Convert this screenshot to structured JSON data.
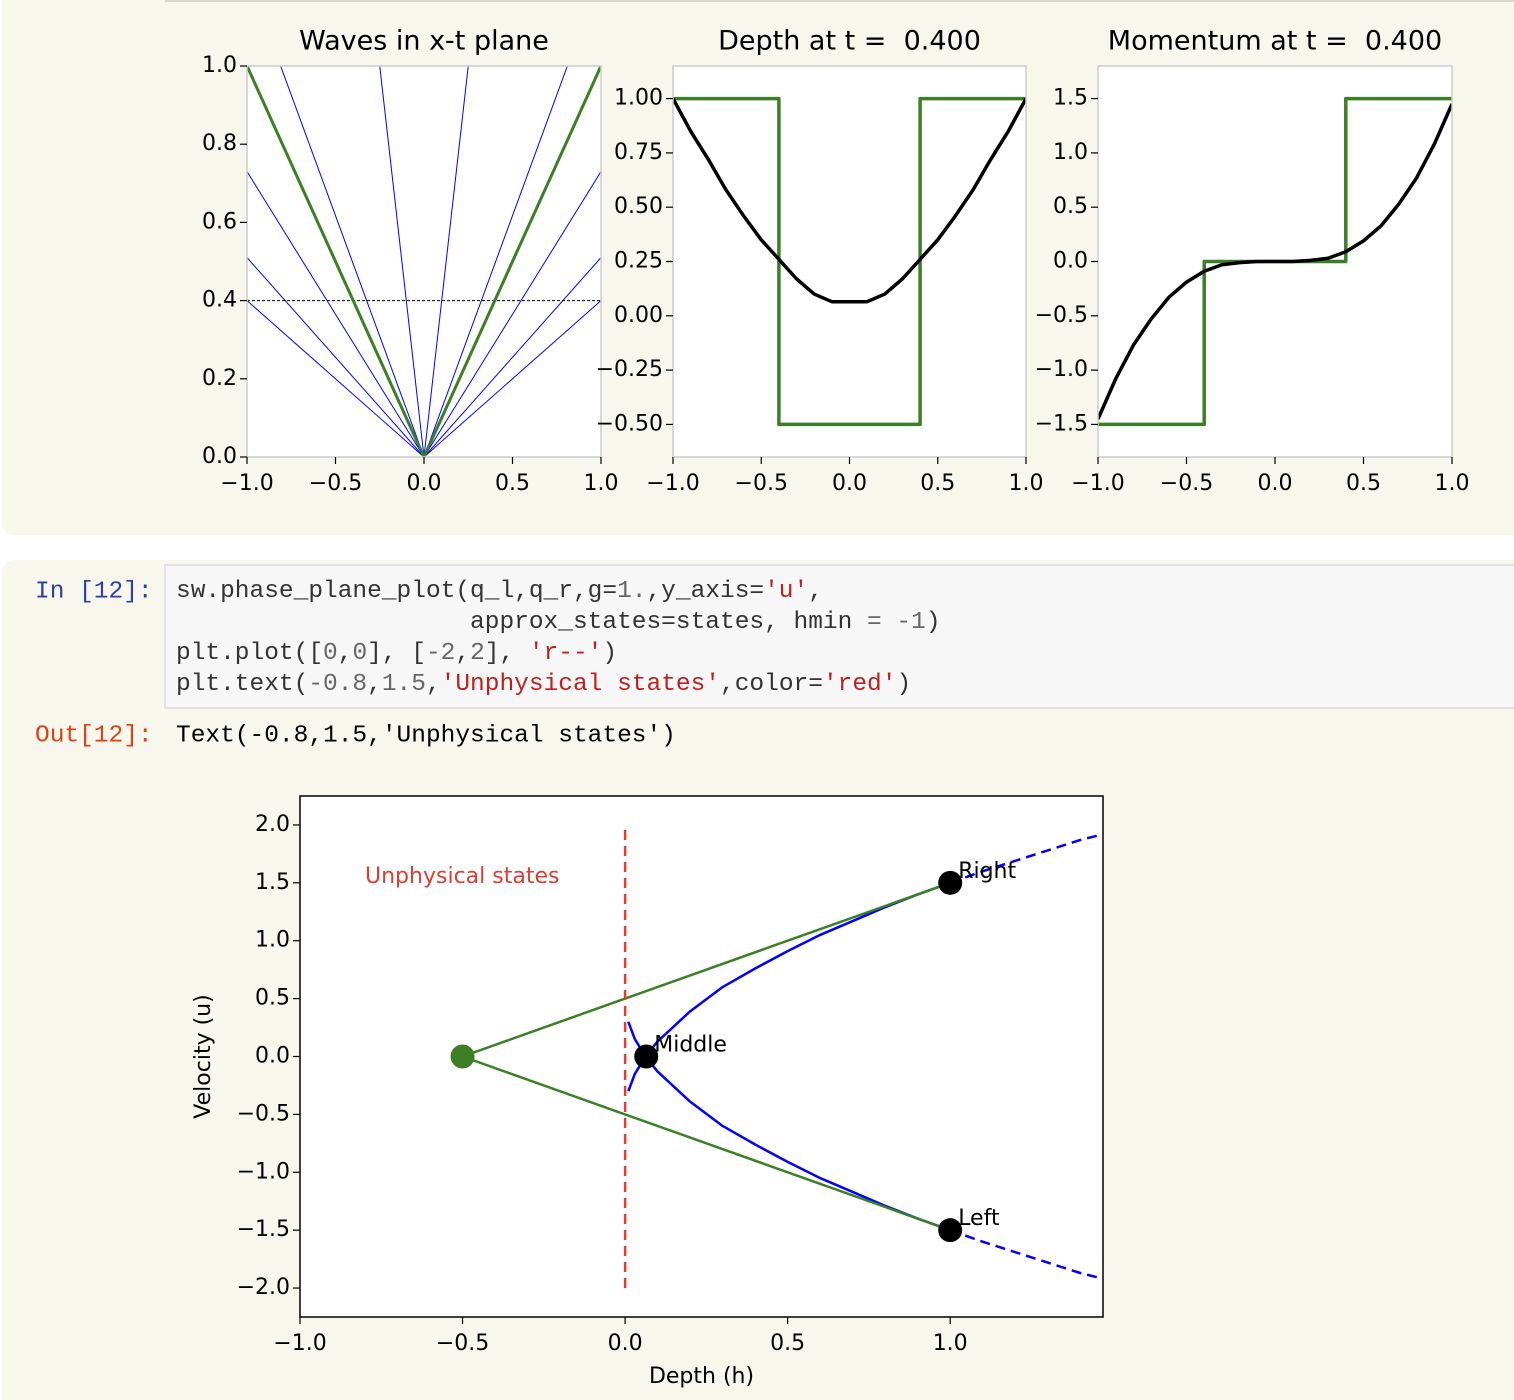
{
  "notebook": {
    "input_prompt": "In [12]:",
    "code": [
      [
        {
          "text": "sw.phase_plane_plot(q_l,q_r,g=",
          "color": "#333333"
        },
        {
          "text": "1.",
          "color": "#666666"
        },
        {
          "text": ",y_axis=",
          "color": "#333333"
        },
        {
          "text": "'u'",
          "color": "#ba2121"
        },
        {
          "text": ",",
          "color": "#333333"
        }
      ],
      [
        {
          "text": "                    approx_states=states, hmin ",
          "color": "#333333"
        },
        {
          "text": "= -1",
          "color": "#666666"
        },
        {
          "text": ")",
          "color": "#333333"
        }
      ],
      [
        {
          "text": "plt.plot([",
          "color": "#333333"
        },
        {
          "text": "0",
          "color": "#666666"
        },
        {
          "text": ",",
          "color": "#333333"
        },
        {
          "text": "0",
          "color": "#666666"
        },
        {
          "text": "], [",
          "color": "#333333"
        },
        {
          "text": "-2",
          "color": "#666666"
        },
        {
          "text": ",",
          "color": "#333333"
        },
        {
          "text": "2",
          "color": "#666666"
        },
        {
          "text": "], ",
          "color": "#333333"
        },
        {
          "text": "'r--'",
          "color": "#ba2121"
        },
        {
          "text": ")",
          "color": "#333333"
        }
      ],
      [
        {
          "text": "plt.text(",
          "color": "#333333"
        },
        {
          "text": "-0.8",
          "color": "#666666"
        },
        {
          "text": ",",
          "color": "#333333"
        },
        {
          "text": "1.5",
          "color": "#666666"
        },
        {
          "text": ",",
          "color": "#333333"
        },
        {
          "text": "'Unphysical states'",
          "color": "#ba2121"
        },
        {
          "text": ",color=",
          "color": "#333333"
        },
        {
          "text": "'red'",
          "color": "#ba2121"
        },
        {
          "text": ")",
          "color": "#333333"
        }
      ]
    ],
    "output_prompt": "Out[12]:",
    "output_text": "Text(-0.8,1.5,'Unphysical states')"
  },
  "chart_data": [
    {
      "type": "line",
      "title": "Waves in x-t plane",
      "xlim": [
        -1,
        1
      ],
      "ylim": [
        0,
        1
      ],
      "xticks": [
        {
          "value": -1,
          "label": "−1.0"
        },
        {
          "value": -0.5,
          "label": "−0.5"
        },
        {
          "value": 0,
          "label": "0.0"
        },
        0.5,
        {
          "value": 1,
          "label": "1.0"
        }
      ],
      "yticks": [
        {
          "value": 0,
          "label": "0.0"
        },
        0.2,
        0.4,
        0.6,
        0.8,
        {
          "value": 1,
          "label": "1.0"
        }
      ],
      "spine_color": "#cccccc",
      "series": [
        {
          "color": "#0000ff",
          "x": [
            0,
            -0.81
          ],
          "values": [
            0,
            1
          ]
        },
        {
          "color": "#0000ff",
          "x": [
            0,
            -0.25
          ],
          "values": [
            0,
            1
          ]
        },
        {
          "color": "#0000ff",
          "x": [
            0,
            0.25
          ],
          "values": [
            0,
            1
          ]
        },
        {
          "color": "#0000ff",
          "x": [
            0,
            0.81
          ],
          "values": [
            0,
            1
          ]
        },
        {
          "color": "#0000ff",
          "x": [
            0,
            -1
          ],
          "values": [
            0,
            0.73
          ]
        },
        {
          "color": "#0000ff",
          "x": [
            0,
            -1
          ],
          "values": [
            0,
            0.51
          ]
        },
        {
          "color": "#0000ff",
          "x": [
            0,
            -1
          ],
          "values": [
            0,
            0.4
          ]
        },
        {
          "color": "#0000ff",
          "x": [
            0,
            1
          ],
          "values": [
            0,
            0.73
          ]
        },
        {
          "color": "#0000ff",
          "x": [
            0,
            1
          ],
          "values": [
            0,
            0.51
          ]
        },
        {
          "color": "#0000ff",
          "x": [
            0,
            1
          ],
          "values": [
            0,
            0.4
          ]
        },
        {
          "color": "#000000",
          "linestyle": "dashed",
          "x": [
            -1,
            1
          ],
          "values": [
            0.4,
            0.4
          ]
        },
        {
          "color": "#3d7f26",
          "x": [
            0,
            -1
          ],
          "values": [
            0,
            1
          ]
        },
        {
          "color": "#3d7f26",
          "x": [
            0,
            1
          ],
          "values": [
            0,
            1
          ]
        }
      ]
    },
    {
      "type": "line",
      "title": "Depth at t =  0.400",
      "xlim": [
        -1,
        1
      ],
      "ylim": [
        -0.65,
        1.15
      ],
      "xticks": [
        {
          "value": -1,
          "label": "−1.0"
        },
        {
          "value": -0.5,
          "label": "−0.5"
        },
        {
          "value": 0,
          "label": "0.0"
        },
        0.5,
        {
          "value": 1,
          "label": "1.0"
        }
      ],
      "yticks": [
        {
          "value": -0.5,
          "label": "−0.50"
        },
        {
          "value": -0.25,
          "label": "−0.25"
        },
        {
          "value": 0,
          "label": "0.00"
        },
        0.25,
        {
          "value": 0.5,
          "label": "0.50"
        },
        0.75,
        {
          "value": 1,
          "label": "1.00"
        }
      ],
      "spine_color": "#cccccc",
      "series": [
        {
          "color": "#3d7f26",
          "x": [
            -1,
            -0.4,
            -0.4,
            0.4,
            0.4,
            1
          ],
          "values": [
            1,
            1,
            -0.5,
            -0.5,
            1,
            1
          ]
        },
        {
          "color": "#000000",
          "x": [
            -1,
            -0.9,
            -0.8,
            -0.7,
            -0.6,
            -0.5,
            -0.4,
            -0.3,
            -0.2,
            -0.1,
            0.1,
            0.2,
            0.3,
            0.4,
            0.5,
            0.6,
            0.7,
            0.8,
            0.9,
            1
          ],
          "values": [
            1,
            0.85,
            0.72,
            0.58,
            0.46,
            0.35,
            0.26,
            0.17,
            0.1,
            0.065,
            0.065,
            0.1,
            0.17,
            0.26,
            0.35,
            0.46,
            0.58,
            0.72,
            0.85,
            1
          ]
        }
      ]
    },
    {
      "type": "line",
      "title": "Momentum at t =  0.400",
      "xlim": [
        -1,
        1
      ],
      "ylim": [
        -1.8,
        1.8
      ],
      "xticks": [
        {
          "value": -1,
          "label": "−1.0"
        },
        {
          "value": -0.5,
          "label": "−0.5"
        },
        {
          "value": 0,
          "label": "0.0"
        },
        0.5,
        {
          "value": 1,
          "label": "1.0"
        }
      ],
      "yticks": [
        {
          "value": -1.5,
          "label": "−1.5"
        },
        {
          "value": -1,
          "label": "−1.0"
        },
        {
          "value": -0.5,
          "label": "−0.5"
        },
        {
          "value": 0,
          "label": "0.0"
        },
        0.5,
        {
          "value": 1,
          "label": "1.0"
        },
        1.5
      ],
      "spine_color": "#cccccc",
      "series": [
        {
          "color": "#3d7f26",
          "x": [
            -1,
            -0.4,
            -0.4,
            0.4,
            0.4,
            1
          ],
          "values": [
            -1.5,
            -1.5,
            0,
            0,
            1.5,
            1.5
          ]
        },
        {
          "color": "#000000",
          "x": [
            -1,
            -0.9,
            -0.8,
            -0.7,
            -0.6,
            -0.5,
            -0.4,
            -0.3,
            -0.2,
            -0.1,
            0.1,
            0.2,
            0.3,
            0.4,
            0.5,
            0.6,
            0.7,
            0.8,
            0.9,
            1
          ],
          "values": [
            -1.45,
            -1.08,
            -0.77,
            -0.53,
            -0.33,
            -0.19,
            -0.09,
            -0.03,
            -0.01,
            0,
            0,
            0.01,
            0.03,
            0.09,
            0.19,
            0.33,
            0.53,
            0.77,
            1.08,
            1.45
          ]
        }
      ]
    },
    {
      "type": "line",
      "xlabel": "Depth (h)",
      "ylabel": "Velocity (u)",
      "xlim": [
        -1,
        1.47
      ],
      "ylim": [
        -2.25,
        2.25
      ],
      "xticks": [
        {
          "value": -1,
          "label": "−1.0"
        },
        {
          "value": -0.5,
          "label": "−0.5"
        },
        {
          "value": 0,
          "label": "0.0"
        },
        0.5,
        {
          "value": 1,
          "label": "1.0"
        }
      ],
      "yticks": [
        {
          "value": -2,
          "label": "−2.0"
        },
        {
          "value": -1.5,
          "label": "−1.5"
        },
        {
          "value": -1,
          "label": "−1.0"
        },
        {
          "value": -0.5,
          "label": "−0.5"
        },
        {
          "value": 0,
          "label": "0.0"
        },
        0.5,
        {
          "value": 1,
          "label": "1.0"
        },
        1.5,
        {
          "value": 2,
          "label": "2.0"
        }
      ],
      "spine_color": "#000000",
      "series": [
        {
          "color": "#0000ff",
          "x": [
            0.01,
            0.03,
            0.065,
            0.1,
            0.2,
            0.3,
            0.4,
            0.5,
            0.6,
            0.7,
            0.8,
            0.9,
            1
          ],
          "values": [
            0.3,
            0.15,
            -0.01,
            -0.13,
            -0.39,
            -0.6,
            -0.76,
            -0.91,
            -1.05,
            -1.17,
            -1.29,
            -1.4,
            -1.5
          ]
        },
        {
          "color": "#0000ff",
          "x": [
            0.01,
            0.03,
            0.065,
            0.1,
            0.2,
            0.3,
            0.4,
            0.5,
            0.6,
            0.7,
            0.8,
            0.9,
            1
          ],
          "values": [
            -0.3,
            -0.15,
            0.01,
            0.13,
            0.39,
            0.6,
            0.76,
            0.91,
            1.05,
            1.17,
            1.29,
            1.4,
            1.5
          ]
        },
        {
          "color": "#0000ff",
          "linestyle": "dashed",
          "x": [
            1,
            1.1,
            1.2,
            1.3,
            1.4,
            1.47
          ],
          "values": [
            1.5,
            1.6,
            1.69,
            1.78,
            1.87,
            1.92
          ]
        },
        {
          "color": "#0000ff",
          "linestyle": "dashed",
          "x": [
            1,
            1.1,
            1.2,
            1.3,
            1.4,
            1.47
          ],
          "values": [
            -1.5,
            -1.6,
            -1.69,
            -1.78,
            -1.87,
            -1.92
          ]
        },
        {
          "color": "#3d7f26",
          "x": [
            -0.5,
            1
          ],
          "values": [
            0,
            1.5
          ]
        },
        {
          "color": "#3d7f26",
          "x": [
            -0.5,
            1
          ],
          "values": [
            0,
            -1.5
          ]
        },
        {
          "color": "#e03c31",
          "linestyle": "dashed",
          "x": [
            0,
            0
          ],
          "values": [
            -2,
            2
          ]
        }
      ],
      "points": [
        {
          "x": -0.5,
          "y": 0,
          "color": "#3d7f26"
        },
        {
          "x": 1,
          "y": -1.5,
          "color": "#000000",
          "label": "Left"
        },
        {
          "x": 0.065,
          "y": 0,
          "color": "#000000",
          "label": "Middle"
        },
        {
          "x": 1,
          "y": 1.5,
          "color": "#000000",
          "label": "Right"
        }
      ],
      "annotations": [
        {
          "text": "Unphysical states",
          "x": -0.8,
          "y": 1.5,
          "color": "#e03c31"
        }
      ]
    }
  ]
}
